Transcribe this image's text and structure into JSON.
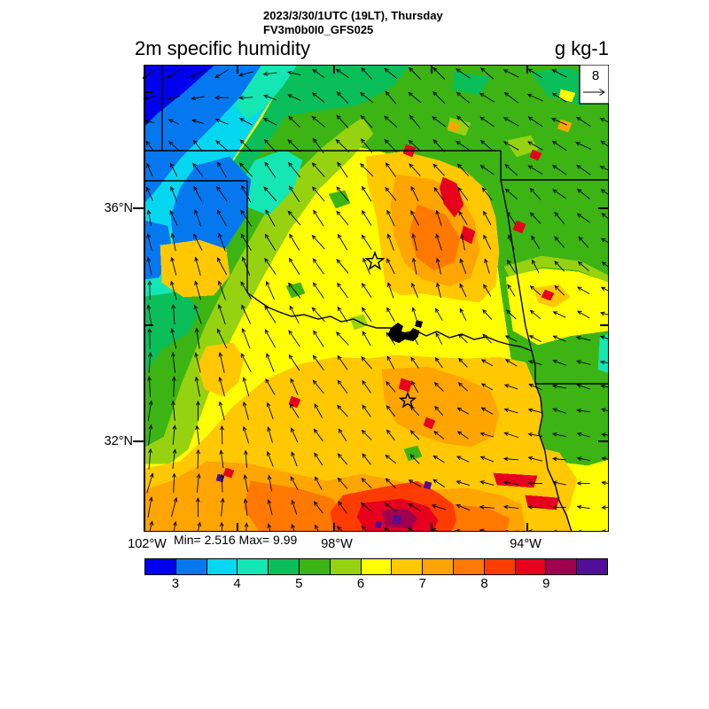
{
  "header": {
    "datetime_line": "2023/3/30/1UTC (19LT), Thursday",
    "model_line": "FV3m0b0I0_GFS025",
    "variable_title": "2m specific humidity",
    "units_label": "g kg-1"
  },
  "map": {
    "stats_label": "Min= 2.516 Max= 9.99",
    "min": 2.516,
    "max": 9.99,
    "ref_vector": {
      "label": "8"
    },
    "axis": {
      "lat_tick_labels": [
        "36°N",
        "32°N"
      ],
      "lon_tick_labels": [
        "102°W",
        "98°W",
        "94°W"
      ]
    },
    "stars": [
      {
        "name": "star-marker-1"
      },
      {
        "name": "star-marker-2"
      }
    ]
  },
  "colorbar": {
    "tick_labels": [
      "3",
      "4",
      "5",
      "6",
      "7",
      "8",
      "9"
    ],
    "colors": [
      "#0000F0",
      "#0578F0",
      "#05D7F0",
      "#14E6B4",
      "#0ABE5A",
      "#3CB414",
      "#96D20F",
      "#FFFF00",
      "#FFC800",
      "#FFA500",
      "#FF7800",
      "#FF3C00",
      "#E6001E",
      "#A00050",
      "#500F96"
    ]
  },
  "chart_data": {
    "type": "heatmap",
    "title": "2m specific humidity",
    "units": "g kg-1",
    "valid_time": "2023/3/30/1UTC (19LT), Thursday",
    "model": "FV3m0b0I0_GFS025",
    "min": 2.516,
    "max": 9.99,
    "colorbar_values": [
      3,
      4,
      5,
      6,
      7,
      8,
      9
    ],
    "colorbar_range": [
      2.5,
      10
    ],
    "colorbar_step": 0.5,
    "lat_ticks": [
      "36°N",
      "32°N"
    ],
    "lon_ticks": [
      "102°W",
      "98°W",
      "94°W"
    ],
    "wind_reference": 8,
    "wind_field_uv": [
      [
        [
          -5,
          -4
        ],
        [
          -5,
          -3
        ],
        [
          -4,
          3
        ],
        [
          -4,
          4
        ],
        [
          -5,
          3
        ],
        [
          -5,
          2
        ]
      ],
      [
        [
          -2,
          4
        ],
        [
          -4,
          5
        ],
        [
          -4,
          5
        ],
        [
          -4,
          4
        ],
        [
          -5,
          3
        ],
        [
          -5,
          3
        ]
      ],
      [
        [
          -1,
          6
        ],
        [
          -3,
          6
        ],
        [
          -4,
          5
        ],
        [
          -1,
          6
        ],
        [
          -2,
          5
        ],
        [
          -4,
          3
        ]
      ],
      [
        [
          0,
          7
        ],
        [
          -3,
          7
        ],
        [
          -4,
          5
        ],
        [
          -2,
          4
        ],
        [
          -4,
          2
        ],
        [
          -5,
          1
        ]
      ],
      [
        [
          1,
          7
        ],
        [
          -1,
          6
        ],
        [
          -3,
          4
        ],
        [
          -3,
          3
        ],
        [
          -5,
          1
        ],
        [
          -4,
          1
        ]
      ],
      [
        [
          2,
          7
        ],
        [
          0,
          6
        ],
        [
          -3,
          4
        ],
        [
          -5,
          2
        ],
        [
          -5,
          0
        ],
        [
          -4,
          0
        ]
      ]
    ],
    "field_description": "Specific humidity 3-4 g/kg northwest (blue/cyan), 5-6 across central band (green/yellow), 7-9 over south-central Texas maximum (orange/red), greener air east."
  }
}
